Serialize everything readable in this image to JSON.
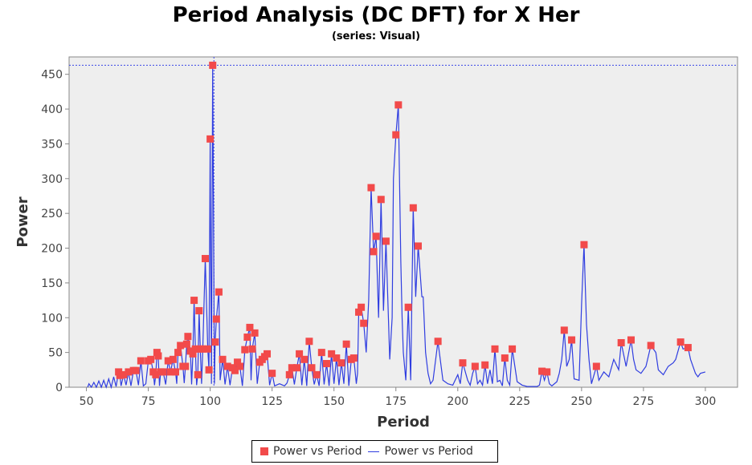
{
  "chart_data": {
    "type": "scatter+line",
    "title": "Period Analysis (DC DFT) for X Her",
    "subtitle": "(series: Visual)",
    "xlabel": "Period",
    "ylabel": "Power",
    "xlim": [
      43,
      313
    ],
    "ylim": [
      0,
      475
    ],
    "xticks": [
      "50",
      "75",
      "100",
      "125",
      "150",
      "175",
      "200",
      "225",
      "250",
      "275",
      "300"
    ],
    "yticks": [
      "0",
      "50",
      "100",
      "150",
      "200",
      "250",
      "300",
      "350",
      "400",
      "450"
    ],
    "crosshair": {
      "x": 101.5,
      "y": 463
    },
    "colors": {
      "points": "#f24a4a",
      "line": "#2f3de0",
      "plot_bg": "#eeeeee",
      "crosshair": "#3a48e8"
    },
    "legend": {
      "position": "bottom",
      "items": [
        "Power vs Period",
        "Power vs Period"
      ]
    },
    "points": [
      [
        63,
        22
      ],
      [
        63.5,
        17
      ],
      [
        65,
        18
      ],
      [
        67,
        22
      ],
      [
        69,
        24
      ],
      [
        70,
        24
      ],
      [
        72,
        38
      ],
      [
        75,
        38
      ],
      [
        76,
        40
      ],
      [
        77,
        22
      ],
      [
        78,
        18
      ],
      [
        78.5,
        50
      ],
      [
        79,
        45
      ],
      [
        80,
        22
      ],
      [
        81,
        22
      ],
      [
        83,
        38
      ],
      [
        84,
        22
      ],
      [
        85,
        40
      ],
      [
        86,
        22
      ],
      [
        87,
        50
      ],
      [
        88,
        60
      ],
      [
        89,
        30
      ],
      [
        90,
        30
      ],
      [
        90.5,
        62
      ],
      [
        91,
        73
      ],
      [
        92,
        52
      ],
      [
        93,
        48
      ],
      [
        93.5,
        125
      ],
      [
        94,
        55
      ],
      [
        95,
        18
      ],
      [
        95.5,
        110
      ],
      [
        96,
        55
      ],
      [
        97,
        55
      ],
      [
        98,
        185
      ],
      [
        99,
        55
      ],
      [
        99.5,
        25
      ],
      [
        100,
        357
      ],
      [
        101,
        463
      ],
      [
        102,
        65
      ],
      [
        102.5,
        98
      ],
      [
        103.5,
        137
      ],
      [
        105,
        40
      ],
      [
        107,
        30
      ],
      [
        109,
        28
      ],
      [
        110,
        24
      ],
      [
        111,
        36
      ],
      [
        112,
        30
      ],
      [
        114,
        54
      ],
      [
        115,
        72
      ],
      [
        116,
        86
      ],
      [
        117,
        55
      ],
      [
        118,
        78
      ],
      [
        120,
        36
      ],
      [
        121,
        40
      ],
      [
        122,
        44
      ],
      [
        123,
        48
      ],
      [
        125,
        20
      ],
      [
        132,
        18
      ],
      [
        133,
        28
      ],
      [
        135,
        28
      ],
      [
        136,
        48
      ],
      [
        138,
        40
      ],
      [
        140,
        66
      ],
      [
        141,
        28
      ],
      [
        143,
        18
      ],
      [
        145,
        50
      ],
      [
        147,
        34
      ],
      [
        149,
        48
      ],
      [
        151,
        42
      ],
      [
        153,
        35
      ],
      [
        155,
        62
      ],
      [
        157,
        40
      ],
      [
        158,
        42
      ],
      [
        160,
        108
      ],
      [
        161,
        115
      ],
      [
        162,
        92
      ],
      [
        165,
        287
      ],
      [
        166,
        195
      ],
      [
        167,
        217
      ],
      [
        169,
        270
      ],
      [
        171,
        210
      ],
      [
        175,
        363
      ],
      [
        176,
        406
      ],
      [
        180,
        115
      ],
      [
        182,
        258
      ],
      [
        184,
        203
      ],
      [
        192,
        66
      ],
      [
        202,
        35
      ],
      [
        207,
        30
      ],
      [
        211,
        32
      ],
      [
        215,
        55
      ],
      [
        219,
        42
      ],
      [
        222,
        55
      ],
      [
        234,
        23
      ],
      [
        236,
        22
      ],
      [
        243,
        82
      ],
      [
        246,
        68
      ],
      [
        251,
        205
      ],
      [
        256,
        30
      ],
      [
        266,
        64
      ],
      [
        270,
        68
      ],
      [
        278,
        60
      ],
      [
        290,
        65
      ],
      [
        293,
        57
      ]
    ],
    "line_extra": [
      [
        50.5,
        0
      ],
      [
        51,
        5
      ],
      [
        52,
        0
      ],
      [
        53,
        7
      ],
      [
        54,
        0
      ],
      [
        55,
        9
      ],
      [
        56,
        0
      ],
      [
        57,
        10
      ],
      [
        58,
        0
      ],
      [
        59,
        12
      ],
      [
        60,
        0
      ],
      [
        61,
        15
      ],
      [
        62,
        1
      ],
      [
        64,
        2
      ],
      [
        66,
        3
      ],
      [
        68,
        2
      ],
      [
        71,
        3
      ],
      [
        73,
        2
      ],
      [
        74,
        5
      ],
      [
        77.5,
        3
      ],
      [
        79.5,
        2
      ],
      [
        82,
        4
      ],
      [
        86.5,
        5
      ],
      [
        89.5,
        6
      ],
      [
        92.5,
        4
      ],
      [
        94.5,
        3
      ],
      [
        96.5,
        5
      ],
      [
        100.5,
        5
      ],
      [
        101.7,
        5
      ],
      [
        104,
        10
      ],
      [
        106,
        4
      ],
      [
        108,
        3
      ],
      [
        113,
        2
      ],
      [
        116.5,
        10
      ],
      [
        119,
        5
      ],
      [
        124,
        3
      ],
      [
        126,
        2
      ],
      [
        128,
        5
      ],
      [
        130,
        2
      ],
      [
        131,
        6
      ],
      [
        134,
        4
      ],
      [
        137,
        3
      ],
      [
        139,
        2
      ],
      [
        142,
        4
      ],
      [
        144,
        2
      ],
      [
        146,
        4
      ],
      [
        148,
        2
      ],
      [
        150,
        5
      ],
      [
        152,
        3
      ],
      [
        154,
        5
      ],
      [
        156,
        2
      ],
      [
        159,
        5
      ],
      [
        159.5,
        20
      ],
      [
        163,
        50
      ],
      [
        164,
        125
      ],
      [
        168,
        100
      ],
      [
        170,
        110
      ],
      [
        172.5,
        40
      ],
      [
        173.5,
        100
      ],
      [
        174,
        300
      ],
      [
        177,
        180
      ],
      [
        177.5,
        100
      ],
      [
        178,
        50
      ],
      [
        179,
        10
      ],
      [
        181,
        10
      ],
      [
        183,
        130
      ],
      [
        185.5,
        130
      ],
      [
        186,
        130
      ],
      [
        187,
        50
      ],
      [
        188,
        20
      ],
      [
        189,
        5
      ],
      [
        190,
        10
      ],
      [
        194,
        10
      ],
      [
        196,
        5
      ],
      [
        198,
        3
      ],
      [
        200,
        18
      ],
      [
        201,
        5
      ],
      [
        204,
        10
      ],
      [
        205,
        3
      ],
      [
        206,
        20
      ],
      [
        208,
        5
      ],
      [
        209,
        10
      ],
      [
        210,
        3
      ],
      [
        212,
        5
      ],
      [
        213,
        25
      ],
      [
        214,
        5
      ],
      [
        216,
        8
      ],
      [
        217,
        10
      ],
      [
        218,
        2
      ],
      [
        220,
        10
      ],
      [
        221,
        3
      ],
      [
        224,
        8
      ],
      [
        226,
        3
      ],
      [
        228,
        1
      ],
      [
        230,
        1
      ],
      [
        232,
        1
      ],
      [
        233,
        3
      ],
      [
        235,
        10
      ],
      [
        237,
        5
      ],
      [
        238,
        2
      ],
      [
        240,
        8
      ],
      [
        241,
        20
      ],
      [
        242,
        40
      ],
      [
        244,
        30
      ],
      [
        245,
        40
      ],
      [
        247,
        12
      ],
      [
        249,
        10
      ],
      [
        250,
        120
      ],
      [
        252,
        90
      ],
      [
        253,
        40
      ],
      [
        254,
        5
      ],
      [
        257,
        10
      ],
      [
        259,
        22
      ],
      [
        261,
        15
      ],
      [
        263,
        40
      ],
      [
        265,
        25
      ],
      [
        268,
        30
      ],
      [
        271,
        40
      ],
      [
        272,
        25
      ],
      [
        274,
        20
      ],
      [
        276,
        30
      ],
      [
        280,
        50
      ],
      [
        281,
        25
      ],
      [
        283,
        18
      ],
      [
        285,
        30
      ],
      [
        287,
        35
      ],
      [
        288,
        40
      ],
      [
        291,
        55
      ],
      [
        294,
        40
      ],
      [
        296,
        20
      ],
      [
        297,
        15
      ],
      [
        298,
        20
      ],
      [
        300,
        22
      ]
    ]
  }
}
